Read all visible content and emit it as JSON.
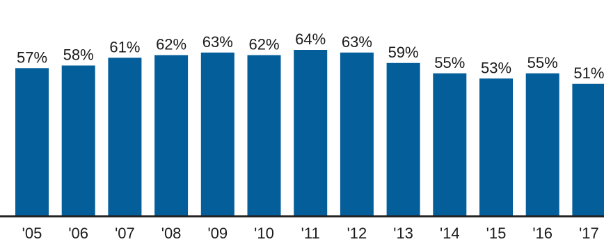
{
  "chart_data": {
    "type": "bar",
    "categories": [
      "'05",
      "'06",
      "'07",
      "'08",
      "'09",
      "'10",
      "'11",
      "'12",
      "'13",
      "'14",
      "'15",
      "'16",
      "'17"
    ],
    "values": [
      57,
      58,
      61,
      62,
      63,
      62,
      64,
      63,
      59,
      55,
      53,
      55,
      51
    ],
    "data_labels": [
      "57%",
      "58%",
      "61%",
      "62%",
      "63%",
      "62%",
      "64%",
      "63%",
      "59%",
      "55%",
      "53%",
      "55%",
      "51%"
    ],
    "ylim": [
      0,
      70
    ],
    "grid": false,
    "legend": "none",
    "colors": {
      "bar": "#045e9a",
      "axis": "#222222",
      "text": "#1a1a1a"
    }
  }
}
